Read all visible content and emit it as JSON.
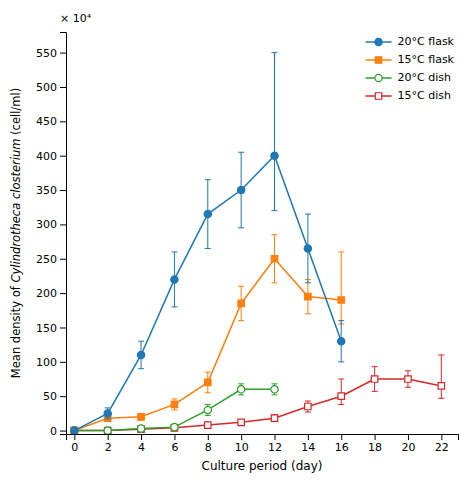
{
  "chart_data": {
    "type": "line",
    "xlabel": "Culture period (day)",
    "ylabel": [
      "Mean density of",
      "Cylindrotheca closterium",
      "(cell/ml)"
    ],
    "annotations": [
      "× 10⁴"
    ],
    "series": [
      {
        "name": "20°C flask",
        "marker": "circle",
        "x": [
          0,
          2,
          4,
          6,
          8,
          10,
          12,
          14,
          16
        ],
        "values": [
          0,
          25,
          110,
          220,
          315,
          350,
          400,
          265,
          130
        ],
        "yerr_lo": [
          0,
          8,
          20,
          40,
          50,
          55,
          80,
          50,
          30
        ],
        "yerr_hi": [
          0,
          8,
          20,
          40,
          50,
          55,
          150,
          50,
          30
        ]
      },
      {
        "name": "15°C flask",
        "marker": "square",
        "x": [
          0,
          2,
          4,
          6,
          8,
          10,
          12,
          14,
          16
        ],
        "values": [
          0,
          18,
          20,
          38,
          70,
          185,
          250,
          195,
          190
        ],
        "yerr_lo": [
          0,
          5,
          5,
          8,
          15,
          25,
          35,
          25,
          35
        ],
        "yerr_hi": [
          0,
          5,
          5,
          8,
          15,
          25,
          35,
          25,
          70
        ]
      },
      {
        "name": "20°C dish",
        "marker": "circle-open",
        "x": [
          0,
          2,
          4,
          6,
          8,
          10,
          12
        ],
        "values": [
          0,
          0,
          3,
          5,
          30,
          60,
          60
        ],
        "yerr_lo": [
          0,
          0,
          1,
          2,
          8,
          8,
          8
        ],
        "yerr_hi": [
          0,
          0,
          1,
          2,
          8,
          8,
          8
        ]
      },
      {
        "name": "15°C dish",
        "marker": "square-open",
        "x": [
          0,
          2,
          4,
          6,
          8,
          10,
          12,
          14,
          16,
          18,
          20,
          22
        ],
        "values": [
          0,
          0,
          2,
          4,
          8,
          12,
          18,
          35,
          50,
          75,
          75,
          65
        ],
        "yerr_lo": [
          0,
          0,
          1,
          1,
          2,
          3,
          5,
          8,
          12,
          18,
          12,
          18
        ],
        "yerr_hi": [
          0,
          0,
          1,
          1,
          2,
          3,
          5,
          8,
          25,
          18,
          12,
          45
        ]
      }
    ],
    "xlim": [
      -0.5,
      23
    ],
    "xticks": [
      0,
      2,
      4,
      6,
      8,
      10,
      12,
      14,
      16,
      18,
      20,
      22
    ],
    "ylim": [
      -5,
      580
    ],
    "yticks": [
      0,
      50,
      100,
      150,
      200,
      250,
      300,
      350,
      400,
      450,
      500,
      550
    ],
    "grid": false,
    "legend": "upper right"
  }
}
